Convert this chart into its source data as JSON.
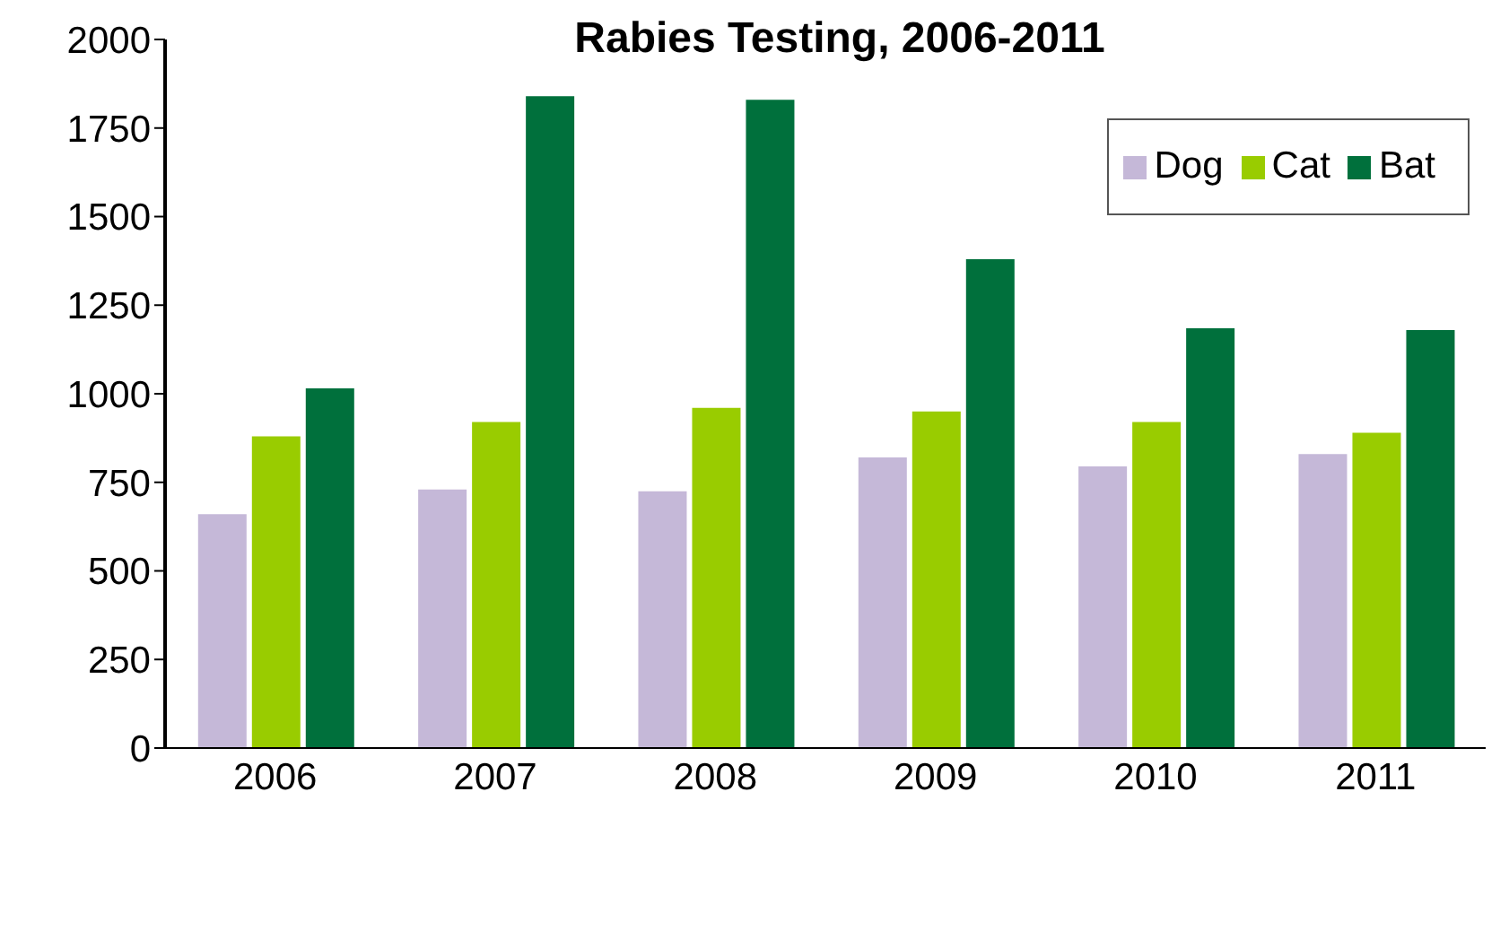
{
  "chart_data": {
    "type": "bar",
    "title": "Rabies Testing, 2006-2011",
    "categories": [
      "2006",
      "2007",
      "2008",
      "2009",
      "2010",
      "2011"
    ],
    "series": [
      {
        "name": "Dog",
        "color": "#c5b8d8",
        "values": [
          660,
          730,
          725,
          820,
          795,
          830
        ]
      },
      {
        "name": "Cat",
        "color": "#99cc00",
        "values": [
          880,
          920,
          960,
          950,
          920,
          890
        ]
      },
      {
        "name": "Bat",
        "color": "#00703c",
        "values": [
          1015,
          1840,
          1830,
          1380,
          1185,
          1180
        ]
      }
    ],
    "ylim": [
      0,
      2000
    ],
    "yticks": [
      0,
      250,
      500,
      750,
      1000,
      1250,
      1500,
      1750,
      2000
    ],
    "grid": false,
    "legend": "top right"
  }
}
